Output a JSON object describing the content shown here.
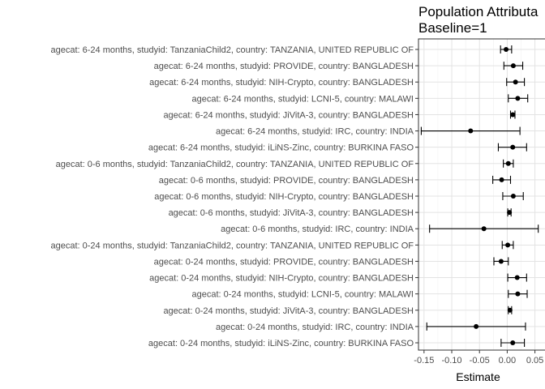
{
  "chart_data": {
    "type": "forest",
    "title_lines": [
      "Population Attributa",
      "Baseline=1"
    ],
    "xlabel": "Estimate",
    "xlim": [
      -0.16,
      0.055
    ],
    "xticks": [
      -0.15,
      -0.1,
      -0.05,
      0.0,
      0.05
    ],
    "xtick_labels": [
      "-0.15",
      "-0.10",
      "-0.05",
      "0.00",
      "0.05"
    ],
    "grid": true,
    "rows": [
      {
        "label": "agecat: 6-24 months, studyid: TanzaniaChild2, country: TANZANIA, UNITED REPUBLIC OF",
        "estimate": -0.002,
        "lower": -0.012,
        "upper": 0.008
      },
      {
        "label": "agecat: 6-24 months, studyid: PROVIDE, country: BANGLADESH",
        "estimate": 0.011,
        "lower": -0.006,
        "upper": 0.028
      },
      {
        "label": "agecat: 6-24 months, studyid: NIH-Crypto, country: BANGLADESH",
        "estimate": 0.015,
        "lower": -0.001,
        "upper": 0.031
      },
      {
        "label": "agecat: 6-24 months, studyid: LCNI-5, country: MALAWI",
        "estimate": 0.019,
        "lower": 0.002,
        "upper": 0.037
      },
      {
        "label": "agecat: 6-24 months, studyid: JiVitA-3, country: BANGLADESH",
        "estimate": 0.01,
        "lower": 0.006,
        "upper": 0.014
      },
      {
        "label": "agecat: 6-24 months, studyid: IRC, country: INDIA",
        "estimate": -0.066,
        "lower": -0.155,
        "upper": 0.023
      },
      {
        "label": "agecat: 6-24 months, studyid: iLiNS-Zinc, country: BURKINA FASO",
        "estimate": 0.01,
        "lower": -0.016,
        "upper": 0.035
      },
      {
        "label": "agecat: 0-6 months, studyid: TanzaniaChild2, country: TANZANIA, UNITED REPUBLIC OF",
        "estimate": 0.002,
        "lower": -0.007,
        "upper": 0.011
      },
      {
        "label": "agecat: 0-6 months, studyid: PROVIDE, country: BANGLADESH",
        "estimate": -0.01,
        "lower": -0.026,
        "upper": 0.006
      },
      {
        "label": "agecat: 0-6 months, studyid: NIH-Crypto, country: BANGLADESH",
        "estimate": 0.011,
        "lower": -0.008,
        "upper": 0.029
      },
      {
        "label": "agecat: 0-6 months, studyid: JiVitA-3, country: BANGLADESH",
        "estimate": 0.004,
        "lower": 0.001,
        "upper": 0.007
      },
      {
        "label": "agecat: 0-6 months, studyid: IRC, country: INDIA",
        "estimate": -0.042,
        "lower": -0.14,
        "upper": 0.056
      },
      {
        "label": "agecat: 0-24 months, studyid: TanzaniaChild2, country: TANZANIA, UNITED REPUBLIC OF",
        "estimate": 0.001,
        "lower": -0.009,
        "upper": 0.011
      },
      {
        "label": "agecat: 0-24 months, studyid: PROVIDE, country: BANGLADESH",
        "estimate": -0.011,
        "lower": -0.024,
        "upper": 0.002
      },
      {
        "label": "agecat: 0-24 months, studyid: NIH-Crypto, country: BANGLADESH",
        "estimate": 0.018,
        "lower": 0.001,
        "upper": 0.035
      },
      {
        "label": "agecat: 0-24 months, studyid: LCNI-5, country: MALAWI",
        "estimate": 0.019,
        "lower": 0.002,
        "upper": 0.036
      },
      {
        "label": "agecat: 0-24 months, studyid: JiVitA-3, country: BANGLADESH",
        "estimate": 0.005,
        "lower": 0.002,
        "upper": 0.008
      },
      {
        "label": "agecat: 0-24 months, studyid: IRC, country: INDIA",
        "estimate": -0.056,
        "lower": -0.145,
        "upper": 0.033
      },
      {
        "label": "agecat: 0-24 months, studyid: iLiNS-Zinc, country: BURKINA FASO",
        "estimate": 0.01,
        "lower": -0.011,
        "upper": 0.031
      }
    ]
  }
}
